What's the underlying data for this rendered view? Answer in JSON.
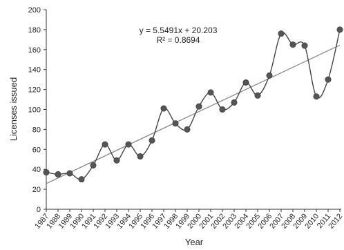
{
  "chart_data": {
    "type": "line",
    "title": "",
    "xlabel": "Year",
    "ylabel": "Licenses issued",
    "x": [
      "1987",
      "1988",
      "1989",
      "1990",
      "1991",
      "1992",
      "1993",
      "1994",
      "1995",
      "1996",
      "1997",
      "1998",
      "1999",
      "2000",
      "2001",
      "2002",
      "2003",
      "2004",
      "2005",
      "2006",
      "2007",
      "2008",
      "2009",
      "2010",
      "2011",
      "2012"
    ],
    "series": [
      {
        "values": [
          37,
          35,
          36,
          30,
          44,
          65,
          49,
          65,
          53,
          69,
          101,
          86,
          80,
          103,
          117,
          100,
          107,
          127,
          114,
          134,
          176,
          165,
          164,
          113,
          130,
          180
        ]
      }
    ],
    "trendline": {
      "slope": 5.5491,
      "intercept": 20.203,
      "equation": "y = 5.5491x + 20.203",
      "r2": "R² = 0.8694"
    },
    "ylim": [
      0,
      200
    ],
    "yticks": [
      0,
      20,
      40,
      60,
      80,
      100,
      120,
      140,
      160,
      180,
      200
    ],
    "grid": false,
    "legend": "none",
    "colors": {
      "line": "#444444",
      "marker": "#555555",
      "trend": "#888888",
      "axis": "#333333"
    }
  }
}
